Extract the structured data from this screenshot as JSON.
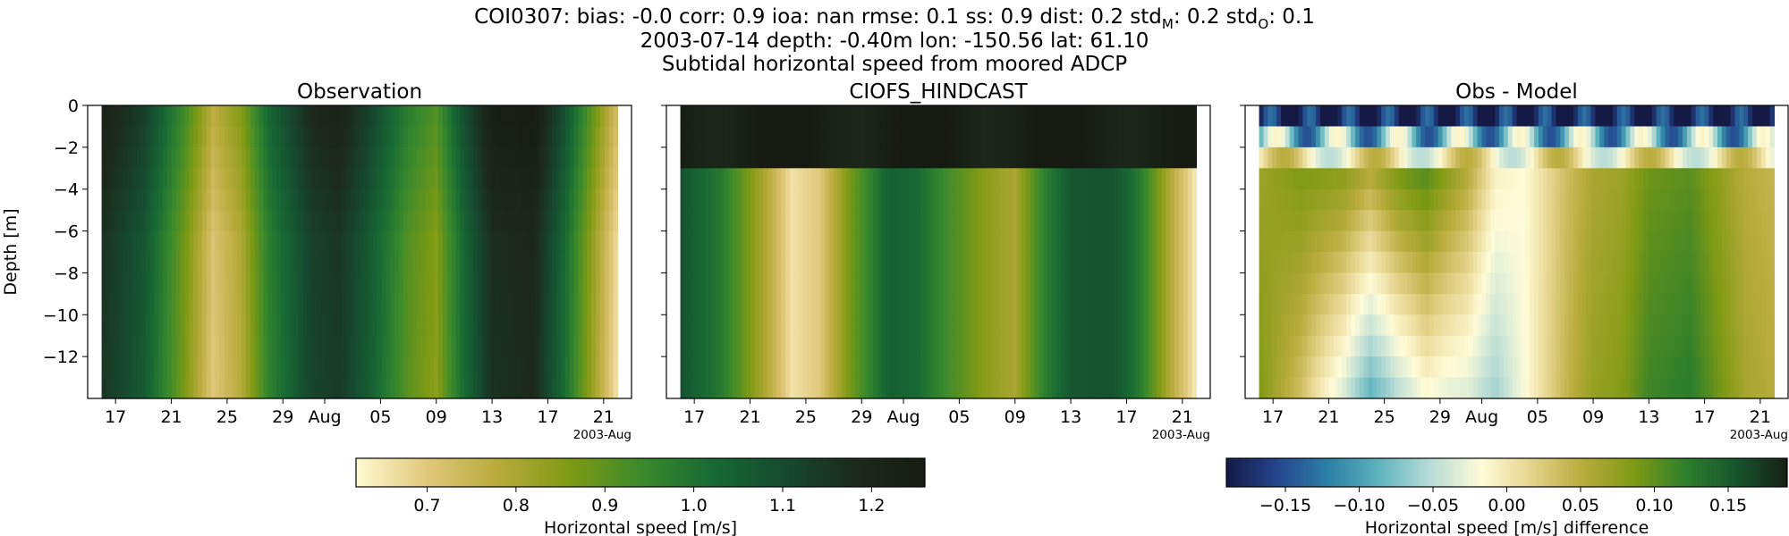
{
  "figure": {
    "title_lines": [
      "COI0307: bias: -0.0  corr: 0.9  ioa: nan  rmse: 0.1  ss: 0.9  dist: 0.2  std",
      "2003-07-14 depth: -0.40m lon: -150.56 lat: 61.10",
      "Subtidal horizontal speed from moored ADCP"
    ],
    "title_line1_parts": {
      "prefix": "COI0307: bias: -0.0  corr: 0.9  ioa: nan  rmse: 0.1  ss: 0.9  dist: 0.2  std",
      "sub_m": "M",
      "mid": ": 0.2  std",
      "sub_o": "O",
      "suffix": ": 0.1"
    }
  },
  "colors": {
    "speed_colormap": [
      "#fefbd2",
      "#e0c77a",
      "#b7ab3b",
      "#7f9a14",
      "#3c8a2c",
      "#176a34",
      "#164a30",
      "#1c2a1c",
      "#171a12"
    ],
    "diff_colormap": [
      "#141a45",
      "#25458e",
      "#2d80a5",
      "#5fb3bd",
      "#b8dcd6",
      "#fffcd8",
      "#e4d38b",
      "#b7ab3b",
      "#7f9a14",
      "#2f7f2c",
      "#17552e",
      "#171f14"
    ]
  },
  "chart_data": [
    {
      "type": "heatmap",
      "title": "Observation",
      "ylabel": "Depth [m]",
      "x_ticks": [
        "17",
        "21",
        "25",
        "29",
        "Aug",
        "05",
        "09",
        "13",
        "17",
        "21"
      ],
      "x_offset_label": "2003-Aug",
      "y_ticks": [
        "0",
        "−2",
        "−4",
        "−6",
        "−8",
        "−10",
        "−12"
      ],
      "y_tick_values": [
        0,
        -2,
        -4,
        -6,
        -8,
        -10,
        -12
      ],
      "ylim": [
        -14,
        0
      ],
      "xlim": [
        "2003-07-15",
        "2003-08-23"
      ],
      "time_range": [
        "2003-07-16",
        "2003-08-22"
      ],
      "depth_bins": 14,
      "speed_profile_by_date": [
        {
          "date": "2003-07-16",
          "value": 1.17
        },
        {
          "date": "2003-07-19",
          "value": 1.08
        },
        {
          "date": "2003-07-22",
          "value": 0.88
        },
        {
          "date": "2003-07-24",
          "value": 0.72
        },
        {
          "date": "2003-07-26",
          "value": 0.8
        },
        {
          "date": "2003-07-28",
          "value": 0.98
        },
        {
          "date": "2003-07-31",
          "value": 1.13
        },
        {
          "date": "2003-08-02",
          "value": 1.16
        },
        {
          "date": "2003-08-04",
          "value": 1.08
        },
        {
          "date": "2003-08-07",
          "value": 0.92
        },
        {
          "date": "2003-08-09",
          "value": 0.86
        },
        {
          "date": "2003-08-11",
          "value": 1.04
        },
        {
          "date": "2003-08-13",
          "value": 1.18
        },
        {
          "date": "2003-08-16",
          "value": 1.2
        },
        {
          "date": "2003-08-18",
          "value": 1.05
        },
        {
          "date": "2003-08-20",
          "value": 0.86
        },
        {
          "date": "2003-08-22",
          "value": 0.67
        }
      ],
      "colorbar": {
        "label": "Horizontal speed [m/s]",
        "ticks": [
          "0.7",
          "0.8",
          "0.9",
          "1.0",
          "1.1",
          "1.2"
        ],
        "tick_values": [
          0.7,
          0.8,
          0.9,
          1.0,
          1.1,
          1.2
        ],
        "range": [
          0.62,
          1.26
        ]
      }
    },
    {
      "type": "heatmap",
      "title": "CIOFS_HINDCAST",
      "x_ticks": [
        "17",
        "21",
        "25",
        "29",
        "Aug",
        "05",
        "09",
        "13",
        "17",
        "21"
      ],
      "x_offset_label": "2003-Aug",
      "ylim": [
        -14,
        0
      ],
      "xlim": [
        "2003-07-15",
        "2003-08-23"
      ],
      "time_range": [
        "2003-07-16",
        "2003-08-22"
      ],
      "depth_bins": 14,
      "speed_profile_by_date": [
        {
          "date": "2003-07-16",
          "value": 1.08
        },
        {
          "date": "2003-07-19",
          "value": 0.98
        },
        {
          "date": "2003-07-22",
          "value": 0.8
        },
        {
          "date": "2003-07-24",
          "value": 0.66
        },
        {
          "date": "2003-07-26",
          "value": 0.7
        },
        {
          "date": "2003-07-28",
          "value": 0.86
        },
        {
          "date": "2003-07-31",
          "value": 1.05
        },
        {
          "date": "2003-08-02",
          "value": 1.02
        },
        {
          "date": "2003-08-04",
          "value": 0.94
        },
        {
          "date": "2003-08-07",
          "value": 0.84
        },
        {
          "date": "2003-08-09",
          "value": 0.8
        },
        {
          "date": "2003-08-11",
          "value": 0.96
        },
        {
          "date": "2003-08-13",
          "value": 1.07
        },
        {
          "date": "2003-08-16",
          "value": 1.08
        },
        {
          "date": "2003-08-18",
          "value": 0.98
        },
        {
          "date": "2003-08-20",
          "value": 0.8
        },
        {
          "date": "2003-08-22",
          "value": 0.64
        }
      ],
      "near_surface_value": 1.24
    },
    {
      "type": "heatmap",
      "title": "Obs - Model",
      "x_ticks": [
        "17",
        "21",
        "25",
        "29",
        "Aug",
        "05",
        "09",
        "13",
        "17",
        "21"
      ],
      "x_offset_label": "2003-Aug",
      "ylim": [
        -14,
        0
      ],
      "xlim": [
        "2003-07-15",
        "2003-08-23"
      ],
      "time_range": [
        "2003-07-16",
        "2003-08-22"
      ],
      "depth_bins": 14,
      "diff_profile_by_date": [
        {
          "date": "2003-07-16",
          "value": 0.08
        },
        {
          "date": "2003-07-19",
          "value": 0.1
        },
        {
          "date": "2003-07-22",
          "value": 0.09
        },
        {
          "date": "2003-07-24",
          "value": 0.06
        },
        {
          "date": "2003-07-26",
          "value": 0.1
        },
        {
          "date": "2003-07-28",
          "value": 0.12
        },
        {
          "date": "2003-07-31",
          "value": 0.06
        },
        {
          "date": "2003-08-02",
          "value": -0.01
        },
        {
          "date": "2003-08-04",
          "value": -0.02
        },
        {
          "date": "2003-08-07",
          "value": 0.04
        },
        {
          "date": "2003-08-09",
          "value": 0.07
        },
        {
          "date": "2003-08-11",
          "value": 0.08
        },
        {
          "date": "2003-08-13",
          "value": 0.11
        },
        {
          "date": "2003-08-16",
          "value": 0.12
        },
        {
          "date": "2003-08-18",
          "value": 0.09
        },
        {
          "date": "2003-08-20",
          "value": 0.06
        },
        {
          "date": "2003-08-22",
          "value": 0.05
        }
      ],
      "surface_diff_value": -0.18,
      "colorbar": {
        "label": "Horizontal speed [m/s] difference",
        "ticks": [
          "−0.15",
          "−0.10",
          "−0.05",
          "0.00",
          "0.05",
          "0.10",
          "0.15"
        ],
        "tick_values": [
          -0.15,
          -0.1,
          -0.05,
          0.0,
          0.05,
          0.1,
          0.15
        ],
        "range": [
          -0.19,
          0.19
        ]
      }
    }
  ]
}
